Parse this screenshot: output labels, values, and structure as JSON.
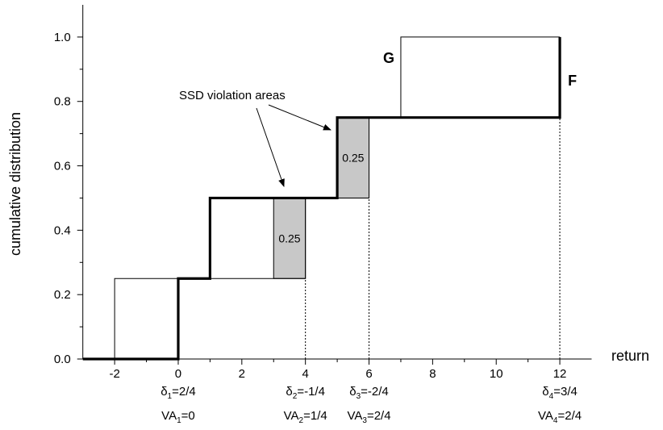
{
  "chart_data": {
    "type": "step",
    "xlabel": "return",
    "ylabel": "cumulative distribution",
    "xlim": [
      -3,
      13
    ],
    "ylim": [
      0,
      1.1
    ],
    "xticks": [
      -2,
      0,
      2,
      4,
      6,
      8,
      10,
      12
    ],
    "xminorticks": [
      -1,
      1,
      3,
      5,
      7,
      9,
      11
    ],
    "yticks": [
      {
        "value": 0,
        "label": "0.0"
      },
      0.2,
      0.4,
      0.6,
      0.8,
      {
        "value": 1,
        "label": "1.0"
      }
    ],
    "yminorticks": [
      0.1,
      0.3,
      0.5,
      0.7,
      0.9
    ],
    "series": [
      {
        "name": "F",
        "color": "#000000",
        "x": [
          -3,
          0,
          0,
          1,
          1,
          5,
          5,
          12,
          12
        ],
        "values": [
          0,
          0,
          0.25,
          0.25,
          0.5,
          0.5,
          0.75,
          0.75,
          1
        ]
      },
      {
        "name": "G",
        "color": "#000000",
        "x": [
          -2,
          -2,
          4,
          4,
          6,
          6,
          7,
          7,
          12
        ],
        "values": [
          0,
          0.25,
          0.25,
          0.5,
          0.5,
          0.75,
          0.75,
          1,
          1
        ]
      }
    ],
    "regions": [
      {
        "x": [
          3,
          4
        ],
        "y": [
          0.25,
          0.5
        ],
        "label": 0.25
      },
      {
        "x": [
          5,
          6
        ],
        "y": [
          0.5,
          0.75
        ],
        "label": 0.25
      }
    ],
    "annotation": "SSD violation areas",
    "points": [
      {
        "x": 0,
        "lines": [
          [
            "δ",
            "1",
            "=2/4"
          ],
          [
            "VA",
            "1",
            "=0"
          ]
        ]
      },
      {
        "x": 4,
        "lines": [
          [
            "δ",
            "2",
            "=-1/4"
          ],
          [
            "VA",
            "2",
            "=1/4"
          ]
        ]
      },
      {
        "x": 6,
        "lines": [
          [
            "δ",
            "3",
            "=-2/4"
          ],
          [
            "VA",
            "3",
            "=2/4"
          ]
        ]
      },
      {
        "x": 12,
        "lines": [
          [
            "δ",
            "4",
            "=3/4"
          ],
          [
            "VA",
            "4",
            "=2/4"
          ]
        ]
      }
    ]
  }
}
